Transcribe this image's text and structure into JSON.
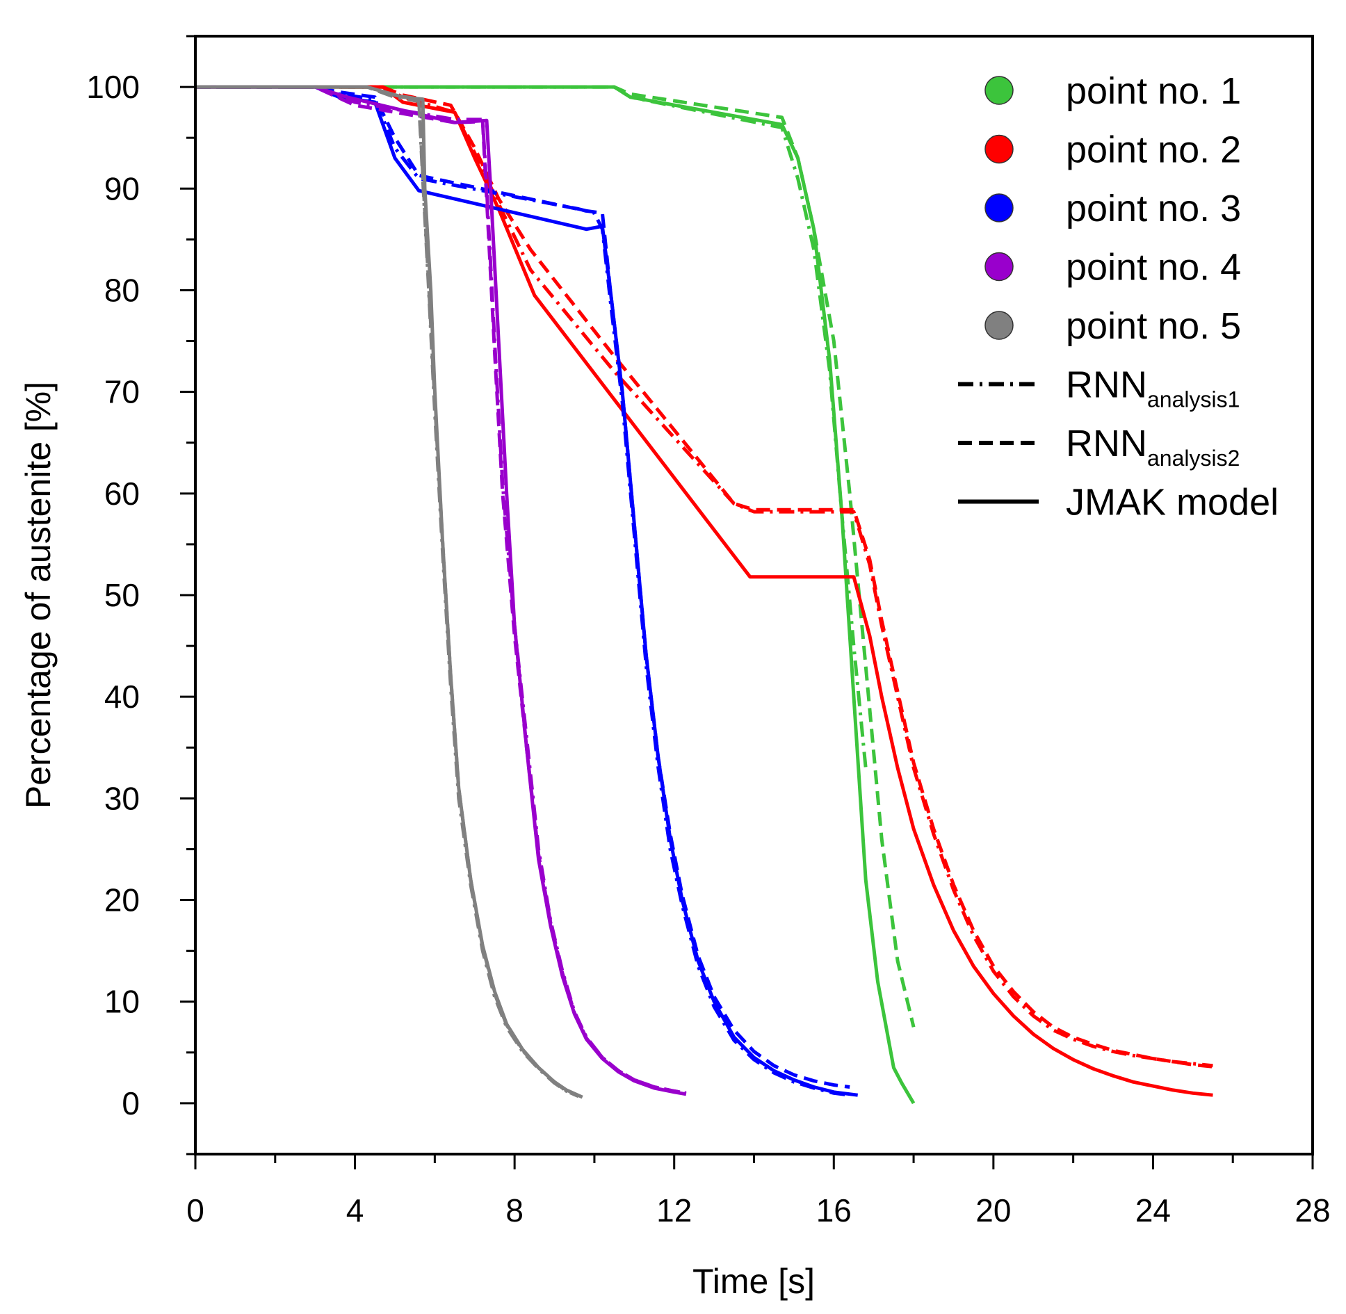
{
  "chart_data": {
    "type": "line",
    "title": "",
    "xlabel": "Time [s]",
    "ylabel": "Percentage of austenite [%]",
    "xlim": [
      0,
      28
    ],
    "ylim": [
      -5,
      105
    ],
    "xticks": [
      0,
      4,
      8,
      12,
      16,
      20,
      24,
      28
    ],
    "xtick_labels": [
      "0",
      "4",
      "8",
      "12",
      "16",
      "20",
      "24",
      "28"
    ],
    "yticks": [
      0,
      10,
      20,
      30,
      40,
      50,
      60,
      70,
      80,
      90,
      100
    ],
    "ytick_labels": [
      "0",
      "10",
      "20",
      "30",
      "40",
      "50",
      "60",
      "70",
      "80",
      "90",
      "100"
    ],
    "grid": false,
    "legend_position": "top-right",
    "legend": {
      "points": [
        {
          "label": "point no. 1",
          "color": "#3cc43c"
        },
        {
          "label": "point no. 2",
          "color": "#ff0000"
        },
        {
          "label": "point no. 3",
          "color": "#0000ff"
        },
        {
          "label": "point no. 4",
          "color": "#9900cc"
        },
        {
          "label": "point no. 5",
          "color": "#808080"
        }
      ],
      "styles": [
        {
          "main": "RNN",
          "sub": "analysis1",
          "dash": "dashdot"
        },
        {
          "main": "RNN",
          "sub": "analysis2",
          "dash": "dashed"
        },
        {
          "main": "JMAK model",
          "sub": "",
          "dash": "solid"
        }
      ]
    },
    "series": [
      {
        "name": "point no. 1 JMAK model",
        "color": "#3cc43c",
        "dash": "solid",
        "x": [
          0,
          10.5,
          10.9,
          14.7,
          15.1,
          15.5,
          15.9,
          16.2,
          16.5,
          16.8,
          17.1,
          17.5,
          17.7,
          18.0
        ],
        "y": [
          100,
          100,
          99,
          96.3,
          93,
          86,
          73,
          58,
          40,
          22,
          12,
          3.5,
          2,
          0
        ]
      },
      {
        "name": "point no. 1 RNN analysis1",
        "color": "#3cc43c",
        "dash": "dashdot",
        "x": [
          0,
          10.5,
          10.9,
          14.7,
          15.1,
          15.5,
          15.9,
          16.2,
          16.5,
          16.8
        ],
        "y": [
          100,
          100,
          99,
          96,
          91,
          84,
          72,
          58,
          45,
          33
        ]
      },
      {
        "name": "point no. 1 RNN analysis2",
        "color": "#3cc43c",
        "dash": "dashed",
        "x": [
          0,
          10.5,
          10.9,
          14.7,
          15.1,
          15.5,
          16.0,
          16.4,
          16.8,
          17.2,
          17.6,
          18.0
        ],
        "y": [
          100,
          100,
          99.3,
          97,
          93,
          86,
          75,
          60,
          43,
          26,
          14,
          7.5
        ]
      },
      {
        "name": "point no. 2 JMAK model",
        "color": "#ff0000",
        "dash": "solid",
        "x": [
          0,
          4.7,
          5.2,
          6.5,
          7.0,
          7.6,
          8.5,
          13.9,
          16.5,
          16.9,
          17.2,
          17.6,
          18.0,
          18.5,
          19.0,
          19.5,
          20.0,
          20.5,
          21.0,
          21.5,
          22.0,
          22.5,
          23.0,
          23.5,
          24.0,
          24.5,
          25.0,
          25.5
        ],
        "y": [
          100,
          100,
          98.5,
          97.5,
          93,
          88,
          79.5,
          51.8,
          51.8,
          46,
          40,
          33,
          27,
          21.5,
          17,
          13.5,
          10.8,
          8.6,
          6.8,
          5.4,
          4.3,
          3.4,
          2.7,
          2.1,
          1.7,
          1.3,
          1.0,
          0.8
        ]
      },
      {
        "name": "point no. 2 RNN analysis1",
        "color": "#ff0000",
        "dash": "dashdot",
        "x": [
          0,
          4.7,
          5.2,
          6.5,
          7.0,
          7.6,
          8.4,
          10.5,
          13.5,
          14.0,
          16.5,
          16.9,
          17.2,
          17.6,
          18.0,
          18.5,
          19.0,
          19.5,
          20.0,
          20.5,
          21.0,
          21.5,
          22.0,
          22.5,
          23.0,
          23.5,
          24.0,
          24.5,
          25.0,
          25.5
        ],
        "y": [
          100,
          100,
          99,
          97.5,
          93.5,
          88.5,
          82,
          72,
          59,
          58.2,
          58.2,
          53,
          47,
          40,
          33,
          26.5,
          21,
          16.5,
          13,
          10.5,
          8.6,
          7.2,
          6.3,
          5.6,
          5.1,
          4.7,
          4.4,
          4.1,
          3.9,
          3.7
        ]
      },
      {
        "name": "point no. 2 RNN analysis2",
        "color": "#ff0000",
        "dash": "dashed",
        "x": [
          0,
          4.7,
          5.2,
          6.4,
          7.0,
          7.6,
          8.4,
          10.5,
          13.5,
          14.0,
          16.5,
          16.9,
          17.2,
          17.6,
          18.0,
          18.5,
          19.0,
          19.5,
          20.0,
          20.5,
          21.0,
          21.5,
          22.0,
          22.5,
          23.0,
          23.5,
          24.0,
          24.5,
          25.0,
          25.5
        ],
        "y": [
          100,
          100,
          99.2,
          98.2,
          94,
          89,
          84,
          73.5,
          59,
          58.4,
          58.4,
          53.5,
          47.5,
          40.5,
          33.5,
          27,
          21.5,
          17,
          13.5,
          11,
          9,
          7.5,
          6.5,
          5.8,
          5.2,
          4.8,
          4.4,
          4.1,
          3.8,
          3.6
        ]
      },
      {
        "name": "point no. 3 JMAK model",
        "color": "#0000ff",
        "dash": "solid",
        "x": [
          0,
          3.0,
          3.6,
          4.5,
          5.0,
          5.6,
          9.8,
          10.2,
          10.4,
          10.7,
          11.0,
          11.3,
          11.6,
          11.9,
          12.2,
          12.6,
          13.0,
          13.5,
          14.0,
          14.5,
          15.0,
          15.5,
          16.0,
          16.6
        ],
        "y": [
          100,
          100,
          99,
          98.5,
          93,
          89.8,
          86,
          86.3,
          80,
          70,
          57,
          44,
          34,
          26,
          20,
          14,
          10,
          6.5,
          4.5,
          3.2,
          2.3,
          1.6,
          1.1,
          0.8
        ]
      },
      {
        "name": "point no. 3 RNN analysis1",
        "color": "#0000ff",
        "dash": "dashdot",
        "x": [
          0,
          3.0,
          3.6,
          4.5,
          5.0,
          5.6,
          9.6,
          10.0,
          10.2,
          10.4,
          10.7,
          11.0,
          11.3,
          11.6,
          11.9,
          12.2,
          12.6,
          13.0,
          13.5,
          14.0,
          14.5,
          15.0,
          15.5,
          16.0,
          16.4
        ],
        "y": [
          100,
          100,
          99.3,
          98.8,
          94,
          91,
          88,
          87.6,
          86,
          79,
          69,
          56,
          43,
          33,
          25,
          19.5,
          13.5,
          9.5,
          6.2,
          4.3,
          3.0,
          2.1,
          1.5,
          1.0,
          0.8
        ]
      },
      {
        "name": "point no. 3 RNN analysis2",
        "color": "#0000ff",
        "dash": "dashed",
        "x": [
          0,
          3.0,
          3.6,
          4.5,
          5.0,
          5.6,
          9.8,
          10.2,
          10.4,
          10.7,
          11.0,
          11.3,
          11.6,
          11.9,
          12.2,
          12.6,
          13.0,
          13.5,
          14.0,
          14.5,
          15.0,
          15.5,
          16.0,
          16.4
        ],
        "y": [
          100,
          100,
          99.5,
          99,
          95,
          91.3,
          87.8,
          87.6,
          80,
          70,
          57,
          44,
          34,
          26.5,
          20.5,
          14.5,
          10.5,
          7.2,
          5.1,
          3.7,
          2.8,
          2.2,
          1.8,
          1.6
        ]
      },
      {
        "name": "point no. 4 JMAK model",
        "color": "#9900cc",
        "dash": "solid",
        "x": [
          0,
          3.0,
          3.8,
          6.5,
          7.3,
          7.4,
          7.6,
          7.8,
          8.0,
          8.3,
          8.6,
          8.9,
          9.2,
          9.5,
          9.8,
          10.2,
          10.6,
          11.0,
          11.5,
          12.0,
          12.3
        ],
        "y": [
          100,
          100,
          99,
          96.5,
          96.7,
          90,
          75,
          60,
          47,
          35,
          24,
          17.5,
          12.5,
          8.8,
          6.3,
          4.4,
          3.1,
          2.2,
          1.5,
          1.1,
          0.9
        ]
      },
      {
        "name": "point no. 4 RNN analysis1",
        "color": "#9900cc",
        "dash": "dashdot",
        "x": [
          0,
          3.0,
          4.0,
          6.5,
          7.2,
          7.3,
          7.5,
          7.7,
          8.0,
          8.3,
          8.6,
          8.9,
          9.2,
          9.5,
          9.8,
          10.2,
          10.6,
          11.0,
          11.5,
          12.0,
          12.3
        ],
        "y": [
          100,
          100,
          98.5,
          96.8,
          96.8,
          90,
          75,
          61,
          47,
          36,
          25,
          18,
          13,
          9,
          6.5,
          4.5,
          3.2,
          2.3,
          1.6,
          1.2,
          1.0
        ]
      },
      {
        "name": "point no. 4 RNN analysis2",
        "color": "#9900cc",
        "dash": "dashed",
        "x": [
          0,
          3.0,
          4.0,
          6.5,
          7.2,
          7.3,
          7.5,
          7.7,
          8.0,
          8.3,
          8.6,
          8.9,
          9.2,
          9.5,
          9.8,
          10.2,
          10.6,
          11.0,
          11.5,
          12.0,
          12.3
        ],
        "y": [
          100,
          100,
          98.2,
          96.5,
          96.6,
          89,
          74,
          60,
          46,
          35,
          24.5,
          17.8,
          12.8,
          8.9,
          6.4,
          4.5,
          3.2,
          2.3,
          1.6,
          1.2,
          1.0
        ]
      },
      {
        "name": "point no. 5 JMAK model",
        "color": "#808080",
        "dash": "solid",
        "x": [
          0,
          4.3,
          5.2,
          5.7,
          5.75,
          5.9,
          6.0,
          6.2,
          6.4,
          6.6,
          6.9,
          7.2,
          7.5,
          7.8,
          8.2,
          8.6,
          9.0,
          9.3,
          9.7
        ],
        "y": [
          100,
          100,
          99,
          98.8,
          90,
          80,
          70,
          55,
          42,
          31,
          22,
          15.5,
          11,
          7.8,
          5.3,
          3.5,
          2.1,
          1.3,
          0.6
        ]
      },
      {
        "name": "point no. 5 RNN analysis1",
        "color": "#808080",
        "dash": "dashdot",
        "x": [
          0,
          4.3,
          5.0,
          5.6,
          5.7,
          5.85,
          6.0,
          6.2,
          6.4,
          6.6,
          6.9,
          7.2,
          7.5,
          7.8,
          8.2,
          8.6,
          9.0,
          9.3,
          9.6
        ],
        "y": [
          100,
          100,
          99,
          98.6,
          91,
          80,
          68,
          54,
          41,
          30,
          21.5,
          15,
          10.5,
          7.5,
          5.1,
          3.4,
          2.0,
          1.2,
          0.7
        ]
      },
      {
        "name": "point no. 5 RNN analysis2",
        "color": "#808080",
        "dash": "dashed",
        "x": [
          0,
          4.3,
          5.0,
          5.6,
          5.7,
          5.85,
          6.0,
          6.2,
          6.4,
          6.6,
          6.9,
          7.2,
          7.5,
          7.8,
          8.2,
          8.6,
          9.0,
          9.3,
          9.6
        ],
        "y": [
          100,
          100,
          99.2,
          98.8,
          91.5,
          80.5,
          69,
          55,
          42,
          31,
          22,
          15.4,
          10.8,
          7.7,
          5.2,
          3.5,
          2.1,
          1.2,
          0.7
        ]
      }
    ]
  }
}
